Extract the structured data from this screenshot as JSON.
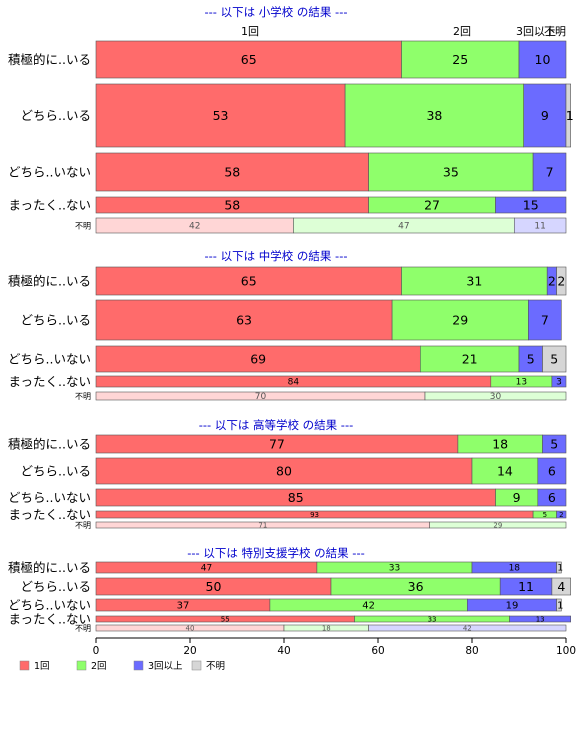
{
  "chart_data": {
    "type": "bar",
    "orientation": "horizontal",
    "stacked": true,
    "percent": true,
    "xlim": [
      0,
      100
    ],
    "x_ticks": [
      "0",
      "20",
      "40",
      "60",
      "80",
      "100"
    ],
    "grid": false,
    "legend_position": "bottom-left",
    "legend": [
      {
        "label": "1回",
        "color": "#FF6B6B"
      },
      {
        "label": "2回",
        "color": "#8FFF6B"
      },
      {
        "label": "3回以上",
        "color": "#6B6BFF"
      },
      {
        "label": "不明",
        "color": "#D6D6D6"
      }
    ],
    "top_labels": [
      "1回",
      "2回",
      "3回以上",
      "不明"
    ],
    "panels": [
      {
        "title": "--- 以下は 小学校 の結果 ---",
        "rows": [
          {
            "label": "積極的に..いる",
            "values": [
              65,
              25,
              10,
              0
            ],
            "labels": [
              "65",
              "25",
              "10",
              ""
            ]
          },
          {
            "label": "どちら..いる",
            "values": [
              53,
              38,
              9,
              1
            ],
            "labels": [
              "53",
              "38",
              "9",
              "1"
            ]
          },
          {
            "label": "どちら..いない",
            "values": [
              58,
              35,
              7,
              0
            ],
            "labels": [
              "58",
              "35",
              "7",
              ""
            ]
          },
          {
            "label": "まったく..ない",
            "values": [
              58,
              27,
              15,
              0
            ],
            "labels": [
              "58",
              "27",
              "15",
              ""
            ]
          },
          {
            "label": "不明",
            "values": [
              42,
              47,
              11,
              0
            ],
            "labels": [
              "42",
              "47",
              "11",
              ""
            ],
            "faded": true
          }
        ]
      },
      {
        "title": "--- 以下は 中学校 の結果 ---",
        "rows": [
          {
            "label": "積極的に..いる",
            "values": [
              65,
              31,
              2,
              2
            ],
            "labels": [
              "65",
              "31",
              "2",
              "2"
            ]
          },
          {
            "label": "どちら..いる",
            "values": [
              63,
              29,
              7,
              0
            ],
            "labels": [
              "63",
              "29",
              "7",
              ""
            ]
          },
          {
            "label": "どちら..いない",
            "values": [
              69,
              21,
              5,
              5
            ],
            "labels": [
              "69",
              "21",
              "5",
              "5"
            ]
          },
          {
            "label": "まったく..ない",
            "values": [
              84,
              13,
              3,
              0
            ],
            "labels": [
              "84",
              "13",
              "3",
              ""
            ]
          },
          {
            "label": "不明",
            "values": [
              70,
              30,
              0,
              0
            ],
            "labels": [
              "70",
              "30",
              "",
              ""
            ],
            "faded": true
          }
        ]
      },
      {
        "title": "--- 以下は 高等学校 の結果 ---",
        "rows": [
          {
            "label": "積極的に..いる",
            "values": [
              77,
              18,
              5,
              0
            ],
            "labels": [
              "77",
              "18",
              "5",
              ""
            ]
          },
          {
            "label": "どちら..いる",
            "values": [
              80,
              14,
              6,
              0
            ],
            "labels": [
              "80",
              "14",
              "6",
              ""
            ]
          },
          {
            "label": "どちら..いない",
            "values": [
              85,
              9,
              6,
              0
            ],
            "labels": [
              "85",
              "9",
              "6",
              ""
            ]
          },
          {
            "label": "まったく..ない",
            "values": [
              93,
              5,
              2,
              0
            ],
            "labels": [
              "93",
              "5",
              "2",
              ""
            ]
          },
          {
            "label": "不明",
            "values": [
              71,
              29,
              0,
              0
            ],
            "labels": [
              "71",
              "29",
              "",
              ""
            ],
            "faded": true
          }
        ]
      },
      {
        "title": "--- 以下は 特別支援学校 の結果 ---",
        "rows": [
          {
            "label": "積極的に..いる",
            "values": [
              47,
              33,
              18,
              1
            ],
            "labels": [
              "47",
              "33",
              "18",
              "1"
            ]
          },
          {
            "label": "どちら..いる",
            "values": [
              50,
              36,
              11,
              4
            ],
            "labels": [
              "50",
              "36",
              "11",
              "4"
            ]
          },
          {
            "label": "どちら..いない",
            "values": [
              37,
              42,
              19,
              1
            ],
            "labels": [
              "37",
              "42",
              "19",
              "1"
            ]
          },
          {
            "label": "まったく..ない",
            "values": [
              55,
              33,
              13,
              0
            ],
            "labels": [
              "55",
              "33",
              "13",
              ""
            ]
          },
          {
            "label": "不明",
            "values": [
              40,
              18,
              42,
              0
            ],
            "labels": [
              "40",
              "18",
              "42",
              ""
            ],
            "faded": true
          }
        ]
      }
    ],
    "colors": {
      "seg": [
        "#FF6B6B",
        "#8FFF6B",
        "#6B6BFF",
        "#D6D6D6"
      ],
      "seg_faded": [
        "#FFD6D6",
        "#DDFFD6",
        "#D6D6FF",
        "#EEEEEE"
      ],
      "title": "#0000CC"
    }
  }
}
